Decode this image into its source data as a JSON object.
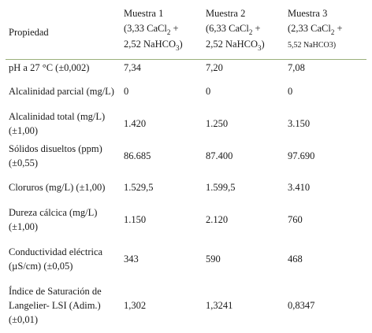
{
  "table": {
    "header": {
      "property": "Propiedad",
      "samples": [
        {
          "name": "Muestra 1",
          "comp_a_pre": "(3,33 CaCl",
          "comp_a_sub": "2",
          "comp_a_post": " +",
          "comp_b_pre": "2,52 NaHCO",
          "comp_b_sub": "3",
          "comp_b_post": ")"
        },
        {
          "name": "Muestra 2",
          "comp_a_pre": "(6,33 CaCl",
          "comp_a_sub": "2",
          "comp_a_post": " +",
          "comp_b_pre": "2,52 NaHCO",
          "comp_b_sub": "3",
          "comp_b_post": ")"
        },
        {
          "name": "Muestra 3",
          "comp_a_pre": "(2,33 CaCl",
          "comp_a_sub": "2",
          "comp_a_post": " +",
          "comp_b_small": "5,52 NaHCO3)"
        }
      ]
    },
    "rows": [
      {
        "label": "pH a 27 °C (±0,002)",
        "values": [
          "7,34",
          "7,20",
          "7,08"
        ]
      },
      {
        "label": "Alcalinidad parcial (mg/L)",
        "values": [
          "0",
          "0",
          "0"
        ]
      },
      {
        "label": "Alcalinidad total (mg/L) (±1,00)",
        "values": [
          "1.420",
          "1.250",
          "3.150"
        ]
      },
      {
        "label": "Sólidos disueltos (ppm) (±0,55)",
        "values": [
          "86.685",
          "87.400",
          "97.690"
        ]
      },
      {
        "label": "Cloruros (mg/L) (±1,00)",
        "values": [
          "1.529,5",
          "1.599,5",
          "3.410"
        ]
      },
      {
        "label": "Dureza cálcica (mg/L) (±1,00)",
        "values": [
          "1.150",
          "2.120",
          "760"
        ]
      },
      {
        "label": "Conductividad eléctrica (µS/cm) (±0,05)",
        "values": [
          "343",
          "590",
          "468"
        ]
      },
      {
        "label": "Índice de Saturación de Langelier- LSI (Adim.) (±0,01)",
        "values": [
          "1,302",
          "1,3241",
          "0,8347"
        ]
      }
    ]
  },
  "colors": {
    "header_rule": "#9ab07a",
    "text": "#1a1a1a"
  }
}
